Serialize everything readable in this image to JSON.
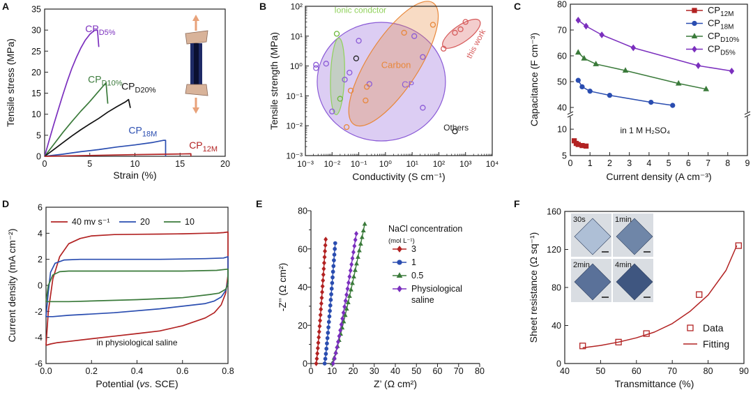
{
  "panels": {
    "A": {
      "label": "A",
      "xlabel": "Strain (%)",
      "ylabel": "Tensile stress (MPa)",
      "xlim": [
        0,
        20
      ],
      "ylim": [
        0,
        35
      ],
      "xticks": [
        0,
        5,
        10,
        15,
        20
      ],
      "yticks": [
        0,
        5,
        10,
        15,
        20,
        25,
        30,
        35
      ],
      "xtick_labels": [
        "0",
        "5",
        "10",
        "15",
        "20"
      ],
      "ytick_labels": [
        "0",
        "5",
        "10",
        "15",
        "20",
        "25",
        "30",
        "35"
      ],
      "series": [
        {
          "id": "d5",
          "base": "CP",
          "sub": "D5%",
          "color": "#7b2fbe",
          "x": [
            0,
            0.5,
            1,
            1.5,
            2,
            2.5,
            3,
            3.5,
            4,
            4.5,
            5,
            5.5,
            5.85,
            6.0
          ],
          "y": [
            0,
            3.8,
            7.5,
            11,
            14.5,
            17.8,
            20.8,
            23.4,
            25.7,
            27.6,
            29.0,
            29.9,
            30.0,
            26.0
          ],
          "label_at": [
            4.5,
            29.5
          ]
        },
        {
          "id": "d10",
          "base": "CP",
          "sub": "D10%",
          "color": "#3a7a3a",
          "x": [
            0,
            1,
            2,
            3,
            4,
            5,
            6,
            6.8,
            7.0
          ],
          "y": [
            0,
            2.8,
            5.6,
            8.2,
            10.7,
            13.0,
            15.5,
            17.5,
            12.5
          ],
          "label_at": [
            4.8,
            17.5
          ]
        },
        {
          "id": "d20",
          "base": "CP",
          "sub": "D20%",
          "color": "#111111",
          "x": [
            0,
            1,
            2,
            3,
            4,
            5,
            6,
            7,
            8,
            9,
            9.3,
            9.5
          ],
          "y": [
            0,
            1.6,
            3.2,
            4.8,
            6.3,
            7.7,
            9.0,
            10.5,
            11.8,
            13.0,
            13.5,
            11.5
          ],
          "label_at": [
            8.5,
            15.8
          ]
        },
        {
          "id": "m18",
          "base": "CP",
          "sub": "18M",
          "color": "#2a4db0",
          "x": [
            0,
            2,
            4,
            6,
            8,
            10,
            12,
            13.2,
            13.4,
            13.4
          ],
          "y": [
            0,
            0.5,
            1.1,
            1.6,
            2.2,
            2.7,
            3.3,
            3.8,
            3.8,
            0
          ],
          "label_at": [
            9.3,
            5.4
          ]
        },
        {
          "id": "m12",
          "base": "CP",
          "sub": "12M",
          "color": "#b22222",
          "x": [
            0,
            5,
            10,
            15,
            16.2,
            16.2
          ],
          "y": [
            0,
            0.2,
            0.4,
            0.55,
            0.6,
            0
          ],
          "label_at": [
            16.0,
            1.8
          ]
        }
      ]
    },
    "B": {
      "label": "B",
      "xlabel": "Conductivity (S cm⁻¹)",
      "ylabel": "Tensile strength (MPa)",
      "xscale": "log",
      "yscale": "log",
      "xlim": [
        0.001,
        10000
      ],
      "ylim": [
        0.001,
        100
      ],
      "xtick_labels": [
        "10⁻³",
        "10⁻²",
        "10⁻¹",
        "10⁰",
        "10¹",
        "10²",
        "10³",
        "10⁴"
      ],
      "ytick_labels": [
        "10⁻³",
        "10⁻²",
        "10⁻¹",
        "10⁰",
        "10¹",
        "10²"
      ],
      "regions": [
        {
          "name": "Ionic condctor",
          "color": "#8fd15a"
        },
        {
          "name": "Carbon",
          "color": "#e8873a"
        },
        {
          "name": "CP",
          "color": "#8a5ad6"
        },
        {
          "name": "Others",
          "color": "#222222"
        },
        {
          "name": "this work",
          "color": "#d65a5a"
        }
      ],
      "points": [
        {
          "x": 0.0025,
          "y": 1.1,
          "g": "CP"
        },
        {
          "x": 0.0025,
          "y": 0.85,
          "g": "CP"
        },
        {
          "x": 0.006,
          "y": 1.2,
          "g": "CP"
        },
        {
          "x": 0.01,
          "y": 0.03,
          "g": "CP"
        },
        {
          "x": 0.03,
          "y": 0.35,
          "g": "CP"
        },
        {
          "x": 0.045,
          "y": 0.6,
          "g": "CP"
        },
        {
          "x": 0.1,
          "y": 7,
          "g": "CP"
        },
        {
          "x": 0.25,
          "y": 0.25,
          "g": "CP"
        },
        {
          "x": 12,
          "y": 10,
          "g": "CP"
        },
        {
          "x": 25,
          "y": 2.0,
          "g": "CP"
        },
        {
          "x": 25,
          "y": 0.04,
          "g": "CP"
        },
        {
          "x": 0.015,
          "y": 12,
          "g": "Ionic condctor"
        },
        {
          "x": 0.02,
          "y": 0.08,
          "g": "Ionic condctor"
        },
        {
          "x": 0.035,
          "y": 0.009,
          "g": "Carbon"
        },
        {
          "x": 0.05,
          "y": 0.15,
          "g": "Carbon"
        },
        {
          "x": 0.18,
          "y": 0.07,
          "g": "Carbon"
        },
        {
          "x": 0.2,
          "y": 0.2,
          "g": "Carbon"
        },
        {
          "x": 5,
          "y": 13,
          "g": "Carbon"
        },
        {
          "x": 60,
          "y": 24,
          "g": "Carbon"
        },
        {
          "x": 0.08,
          "y": 1.8,
          "g": "Others"
        },
        {
          "x": 400,
          "y": 0.0065,
          "g": "Others"
        },
        {
          "x": 150,
          "y": 3.8,
          "g": "this work"
        },
        {
          "x": 400,
          "y": 13,
          "g": "this work"
        },
        {
          "x": 650,
          "y": 17,
          "g": "this work"
        },
        {
          "x": 1000,
          "y": 30,
          "g": "this work"
        }
      ]
    },
    "C": {
      "label": "C",
      "xlabel": "Current density (A cm⁻³)",
      "ylabel": "Capacitance (F cm⁻³)",
      "xlim": [
        0,
        9
      ],
      "xticks": [
        0,
        1,
        2,
        3,
        4,
        5,
        6,
        7,
        8,
        9
      ],
      "xtick_labels": [
        "0",
        "1",
        "2",
        "3",
        "4",
        "5",
        "6",
        "7",
        "8",
        "9"
      ],
      "yticks_upper": [
        40,
        50,
        60,
        70,
        80
      ],
      "ytick_labels_upper": [
        "40",
        "50",
        "60",
        "70",
        "80"
      ],
      "yticks_lower": [
        5,
        10
      ],
      "ytick_labels_lower": [
        "5",
        "10"
      ],
      "annotation": "in 1 M H₂SO₄",
      "series": [
        {
          "base": "CP",
          "sub": "12M",
          "color": "#b22222",
          "marker": "square",
          "x": [
            0.2,
            0.3,
            0.4,
            0.6,
            0.8
          ],
          "y": [
            7.8,
            7.3,
            7.1,
            6.9,
            6.8
          ]
        },
        {
          "base": "CP",
          "sub": "18M",
          "color": "#2a4db0",
          "marker": "circle",
          "x": [
            0.4,
            0.6,
            1.0,
            2.0,
            4.1,
            5.2
          ],
          "y": [
            50.5,
            48.0,
            46.3,
            44.7,
            42.0,
            40.8
          ]
        },
        {
          "base": "CP",
          "sub": "D10%",
          "color": "#3a7a3a",
          "marker": "triangle",
          "x": [
            0.4,
            0.7,
            1.3,
            2.8,
            5.5,
            6.9
          ],
          "y": [
            61.3,
            59.0,
            56.8,
            54.3,
            49.3,
            47.1
          ]
        },
        {
          "base": "CP",
          "sub": "D5%",
          "color": "#7b2fbe",
          "marker": "diamond",
          "x": [
            0.4,
            0.8,
            1.6,
            3.2,
            6.5,
            8.2
          ],
          "y": [
            73.8,
            71.5,
            68.1,
            63.1,
            56.2,
            54.1
          ]
        }
      ]
    },
    "D": {
      "label": "D",
      "xlabel": "Potential (vs. SCE)",
      "xlabel_pre": "Potential (",
      "xlabel_ital": "vs",
      "xlabel_post": ". SCE)",
      "ylabel": "Current density (mA cm⁻²)",
      "xlim": [
        0,
        0.8
      ],
      "ylim": [
        -6,
        6
      ],
      "xticks": [
        0,
        0.2,
        0.4,
        0.6,
        0.8
      ],
      "xtick_labels": [
        "0.0",
        "0.2",
        "0.4",
        "0.6",
        "0.8"
      ],
      "yticks": [
        -6,
        -4,
        -2,
        0,
        2,
        4,
        6
      ],
      "ytick_labels": [
        "-6",
        "-4",
        "-2",
        "0",
        "2",
        "4",
        "6"
      ],
      "annotation": "in physiological saline",
      "legend": [
        {
          "text": "40 mv s⁻¹",
          "color": "#b22222"
        },
        {
          "text": "20",
          "color": "#2a4db0"
        },
        {
          "text": "10",
          "color": "#3a7a3a"
        }
      ],
      "series": [
        {
          "name": "40 mv s-1",
          "color": "#b22222",
          "x": [
            0,
            0.01,
            0.03,
            0.06,
            0.1,
            0.15,
            0.2,
            0.3,
            0.4,
            0.5,
            0.6,
            0.7,
            0.75,
            0.78,
            0.8,
            0.8,
            0.79,
            0.77,
            0.74,
            0.7,
            0.6,
            0.5,
            0.4,
            0.3,
            0.2,
            0.1,
            0.05,
            0.02,
            0.0
          ],
          "y": [
            -4.6,
            -2.0,
            0.5,
            2.2,
            3.2,
            3.6,
            3.8,
            3.9,
            3.92,
            3.94,
            3.96,
            4.0,
            4.02,
            4.05,
            4.1,
            0.8,
            -0.6,
            -1.5,
            -2.1,
            -2.5,
            -3.1,
            -3.5,
            -3.7,
            -3.9,
            -4.1,
            -4.3,
            -4.4,
            -4.5,
            -4.6
          ]
        },
        {
          "name": "20",
          "color": "#2a4db0",
          "x": [
            0,
            0.01,
            0.02,
            0.04,
            0.08,
            0.15,
            0.3,
            0.5,
            0.7,
            0.78,
            0.8,
            0.8,
            0.79,
            0.77,
            0.74,
            0.7,
            0.5,
            0.3,
            0.1,
            0.03,
            0.0
          ],
          "y": [
            -2.4,
            -0.5,
            1.0,
            1.7,
            1.95,
            2.0,
            2.0,
            2.0,
            2.05,
            2.1,
            2.2,
            0.3,
            -0.4,
            -0.9,
            -1.2,
            -1.4,
            -1.8,
            -2.1,
            -2.3,
            -2.4,
            -2.4
          ]
        },
        {
          "name": "10",
          "color": "#3a7a3a",
          "x": [
            0,
            0.01,
            0.03,
            0.06,
            0.1,
            0.2,
            0.4,
            0.6,
            0.75,
            0.8,
            0.8,
            0.79,
            0.76,
            0.72,
            0.6,
            0.4,
            0.2,
            0.1,
            0.03,
            0.0
          ],
          "y": [
            -1.25,
            0.0,
            0.8,
            1.05,
            1.1,
            1.1,
            1.1,
            1.1,
            1.15,
            1.25,
            0.1,
            -0.3,
            -0.6,
            -0.7,
            -0.95,
            -1.1,
            -1.2,
            -1.25,
            -1.25,
            -1.25
          ]
        }
      ]
    },
    "E": {
      "label": "E",
      "xlabel": "Z’ (Ω cm²)",
      "ylabel": "-Z’’ (Ω cm²)",
      "xlim": [
        0,
        80
      ],
      "ylim": [
        0,
        80
      ],
      "xticks": [
        0,
        10,
        20,
        30,
        40,
        50,
        60,
        70,
        80
      ],
      "xtick_labels": [
        "0",
        "10",
        "20",
        "30",
        "40",
        "50",
        "60",
        "70",
        "80"
      ],
      "yticks": [
        0,
        20,
        40,
        60,
        80
      ],
      "ytick_labels": [
        "0",
        "20",
        "40",
        "60",
        "80"
      ],
      "yminor": [
        10,
        30,
        50,
        70
      ],
      "legend_title": "NaCl concentration",
      "legend_units": "(mol L⁻¹)",
      "series": [
        {
          "name": "3",
          "color": "#b22222",
          "marker": "diamond",
          "x0": 2.5,
          "x1": 7.0,
          "ymax": 65
        },
        {
          "name": "1",
          "color": "#2a4db0",
          "marker": "circle",
          "x0": 6.5,
          "x1": 11.5,
          "ymax": 63
        },
        {
          "name": "0.5",
          "color": "#3a7a3a",
          "marker": "triangle",
          "x0": 10.0,
          "x1": 25.5,
          "ymax": 73
        },
        {
          "name": "Physiological",
          "name2": "saline",
          "color": "#7b2fbe",
          "marker": "diamond",
          "x0": 10.5,
          "x1": 21.5,
          "ymax": 68
        }
      ]
    },
    "F": {
      "label": "F",
      "xlabel": "Transmittance (%)",
      "ylabel": "Sheet resistance (Ω sq⁻¹)",
      "xlim": [
        40,
        90
      ],
      "ylim": [
        0,
        160
      ],
      "xticks": [
        40,
        50,
        60,
        70,
        80,
        90
      ],
      "xtick_labels": [
        "40",
        "50",
        "60",
        "70",
        "80",
        "90"
      ],
      "yticks": [
        0,
        40,
        80,
        120,
        160
      ],
      "ytick_labels": [
        "0",
        "40",
        "80",
        "120",
        "160"
      ],
      "data": {
        "x": [
          45,
          55,
          62.8,
          77.5,
          88.5
        ],
        "y": [
          18.5,
          22.5,
          31.5,
          72.5,
          124
        ]
      },
      "fit": {
        "x": [
          45,
          50,
          55,
          60,
          65,
          70,
          75,
          80,
          85,
          88
        ],
        "y": [
          16.5,
          19,
          22.5,
          27,
          33,
          42,
          55,
          72,
          98,
          124
        ]
      },
      "legend": [
        {
          "text": "Data"
        },
        {
          "text": "Fitting"
        }
      ],
      "photos": [
        {
          "label": "30s",
          "tint": "#aebfd6"
        },
        {
          "label": "1min",
          "tint": "#6f86a8"
        },
        {
          "label": "2min",
          "tint": "#5a7199"
        },
        {
          "label": "4min",
          "tint": "#3f5680"
        }
      ]
    }
  }
}
